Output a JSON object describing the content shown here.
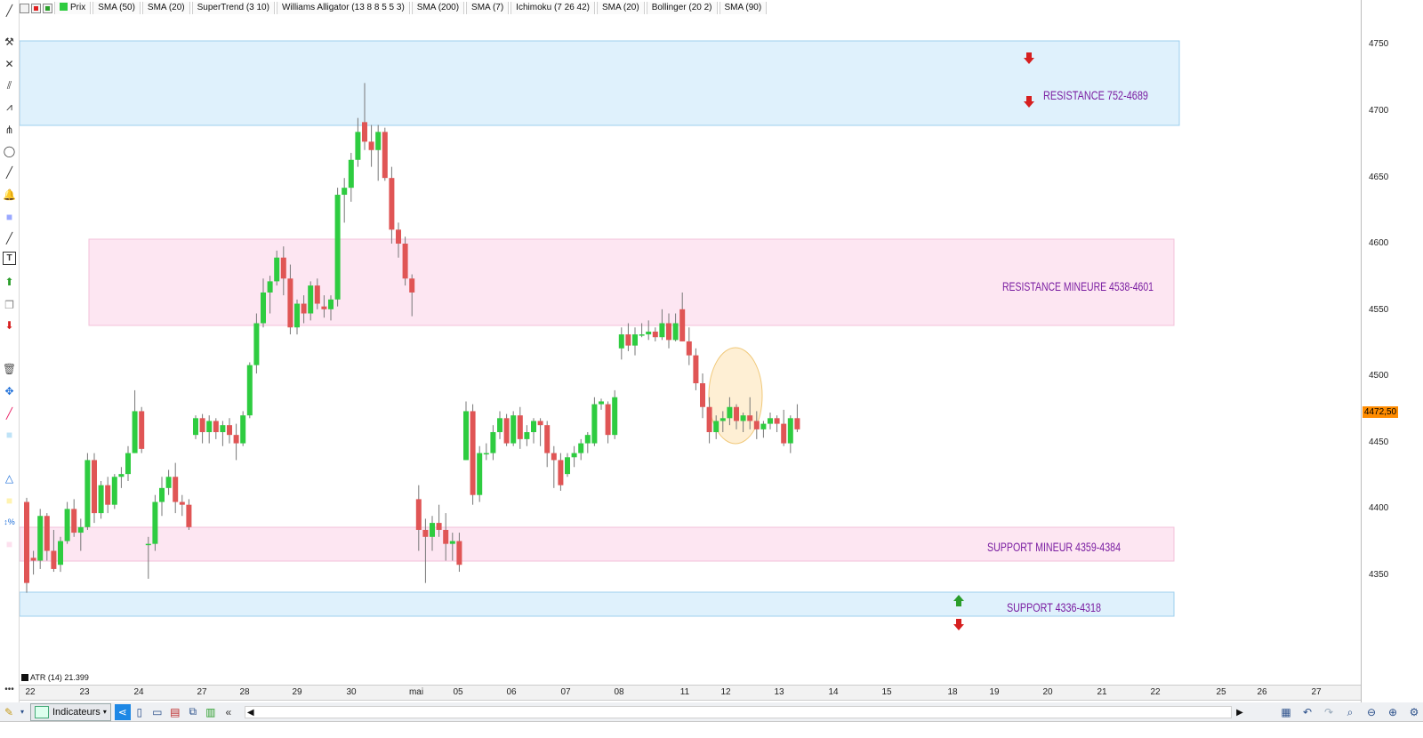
{
  "indicators": [
    "Prix",
    "SMA (50)",
    "SMA (20)",
    "SuperTrend (3 10)",
    "Williams Alligator (13 8 8 5 5 3)",
    "SMA (200)",
    "SMA (7)",
    "Ichimoku (7 26 42)",
    "SMA (20)",
    "Bollinger (20 2)",
    "SMA (90)"
  ],
  "price_axis": {
    "ticks": [
      "4750",
      "4700",
      "4650",
      "4600",
      "4550",
      "4500",
      "4450",
      "4400",
      "4350"
    ],
    "current_price": "4472,50",
    "current_price_color": "#ff8c00"
  },
  "date_axis": {
    "labels": [
      "22",
      "23",
      "24",
      "27",
      "28",
      "29",
      "30",
      "mai",
      "05",
      "06",
      "07",
      "08",
      "11",
      "12",
      "13",
      "14",
      "15",
      "18",
      "19",
      "20",
      "21",
      "22",
      "25",
      "26",
      "27"
    ]
  },
  "zones": [
    {
      "label": "RESISTANCE 752-4689",
      "color": "#dff1fc",
      "border": "#9ccfee"
    },
    {
      "label": "RESISTANCE MINEURE 4538-4601",
      "color": "#fde6f2",
      "border": "#f3c0da"
    },
    {
      "label": "SUPPORT MINEUR 4359-4384",
      "color": "#fde6f2",
      "border": "#f3c0da"
    },
    {
      "label": "SUPPORT 4336-4318",
      "color": "#dff1fc",
      "border": "#9ccfee"
    }
  ],
  "zone_label_color": "#7b1fa2",
  "candle_colors": {
    "up": "#2ecc40",
    "down": "#e05555"
  },
  "atr_label": "ATR (14) 21.399",
  "toolbar": {
    "indicators_label": "Indicateurs"
  },
  "chart_data": {
    "type": "candlestick",
    "ylim": [
      4300,
      4768
    ],
    "ohlc": [
      [
        4420,
        4423,
        4355,
        4362
      ],
      [
        4380,
        4385,
        4368,
        4378
      ],
      [
        4378,
        4415,
        4372,
        4410
      ],
      [
        4410,
        4412,
        4378,
        4385
      ],
      [
        4385,
        4400,
        4370,
        4372
      ],
      [
        4375,
        4395,
        4370,
        4392
      ],
      [
        4392,
        4420,
        4390,
        4415
      ],
      [
        4415,
        4422,
        4395,
        4398
      ],
      [
        4398,
        4408,
        4385,
        4402
      ],
      [
        4402,
        4455,
        4400,
        4450
      ],
      [
        4450,
        4455,
        4405,
        4412
      ],
      [
        4412,
        4435,
        4408,
        4432
      ],
      [
        4432,
        4438,
        4412,
        4418
      ],
      [
        4418,
        4440,
        4415,
        4438
      ],
      [
        4438,
        4445,
        4430,
        4440
      ],
      [
        4440,
        4460,
        4435,
        4455
      ],
      [
        4455,
        4500,
        4455,
        4485
      ],
      [
        4485,
        4488,
        4455,
        4458
      ],
      [
        4390,
        4395,
        4365,
        4390
      ],
      [
        4390,
        4425,
        4385,
        4420
      ],
      [
        4420,
        4438,
        4410,
        4430
      ],
      [
        4430,
        4443,
        4425,
        4438
      ],
      [
        4438,
        4448,
        4412,
        4420
      ],
      [
        4420,
        4425,
        4410,
        4418
      ],
      [
        4418,
        4422,
        4400,
        4402
      ],
      [
        4468,
        4482,
        4465,
        4480
      ],
      [
        4480,
        4483,
        4462,
        4470
      ],
      [
        4470,
        4482,
        4462,
        4478
      ],
      [
        4478,
        4480,
        4465,
        4470
      ],
      [
        4470,
        4478,
        4460,
        4475
      ],
      [
        4475,
        4480,
        4462,
        4468
      ],
      [
        4468,
        4476,
        4450,
        4462
      ],
      [
        4462,
        4485,
        4460,
        4482
      ],
      [
        4482,
        4520,
        4480,
        4518
      ],
      [
        4518,
        4555,
        4512,
        4548
      ],
      [
        4548,
        4580,
        4545,
        4570
      ],
      [
        4570,
        4582,
        4555,
        4578
      ],
      [
        4578,
        4600,
        4575,
        4595
      ],
      [
        4595,
        4603,
        4568,
        4580
      ],
      [
        4580,
        4590,
        4540,
        4545
      ],
      [
        4545,
        4565,
        4540,
        4562
      ],
      [
        4562,
        4568,
        4548,
        4555
      ],
      [
        4555,
        4578,
        4550,
        4575
      ],
      [
        4575,
        4580,
        4558,
        4562
      ],
      [
        4560,
        4568,
        4552,
        4558
      ],
      [
        4558,
        4568,
        4550,
        4565
      ],
      [
        4565,
        4645,
        4560,
        4640
      ],
      [
        4640,
        4652,
        4620,
        4645
      ],
      [
        4645,
        4670,
        4635,
        4665
      ],
      [
        4665,
        4695,
        4660,
        4685
      ],
      [
        4692,
        4720,
        4672,
        4678
      ],
      [
        4678,
        4690,
        4660,
        4672
      ],
      [
        4672,
        4690,
        4650,
        4685
      ],
      [
        4685,
        4688,
        4650,
        4652
      ],
      [
        4652,
        4660,
        4605,
        4615
      ],
      [
        4615,
        4620,
        4595,
        4605
      ],
      [
        4605,
        4610,
        4575,
        4580
      ],
      [
        4580,
        4583,
        4553,
        4570
      ],
      [
        4422,
        4432,
        4385,
        4400
      ],
      [
        4400,
        4408,
        4362,
        4395
      ],
      [
        4395,
        4410,
        4385,
        4405
      ],
      [
        4405,
        4418,
        4395,
        4400
      ],
      [
        4400,
        4412,
        4378,
        4390
      ],
      [
        4390,
        4398,
        4378,
        4392
      ],
      [
        4392,
        4398,
        4370,
        4375
      ],
      [
        4450,
        4492,
        4450,
        4485
      ],
      [
        4485,
        4490,
        4418,
        4425
      ],
      [
        4425,
        4460,
        4420,
        4455
      ],
      [
        4455,
        4462,
        4450,
        4455
      ],
      [
        4455,
        4475,
        4450,
        4470
      ],
      [
        4470,
        4485,
        4465,
        4480
      ],
      [
        4480,
        4483,
        4460,
        4462
      ],
      [
        4462,
        4485,
        4460,
        4482
      ],
      [
        4482,
        4488,
        4458,
        4465
      ],
      [
        4465,
        4475,
        4460,
        4470
      ],
      [
        4470,
        4480,
        4462,
        4478
      ],
      [
        4478,
        4480,
        4460,
        4475
      ],
      [
        4475,
        4478,
        4445,
        4455
      ],
      [
        4455,
        4460,
        4430,
        4450
      ],
      [
        4450,
        4455,
        4428,
        4432
      ],
      [
        4440,
        4455,
        4438,
        4452
      ],
      [
        4452,
        4460,
        4445,
        4455
      ],
      [
        4455,
        4465,
        4450,
        4462
      ],
      [
        4462,
        4470,
        4455,
        4468
      ],
      [
        4462,
        4495,
        4460,
        4490
      ],
      [
        4490,
        4494,
        4486,
        4492
      ],
      [
        4490,
        4492,
        4462,
        4468
      ],
      [
        4468,
        4500,
        4465,
        4495
      ],
      [
        4530,
        4545,
        4522,
        4540
      ],
      [
        4540,
        4548,
        4528,
        4532
      ],
      [
        4532,
        4545,
        4525,
        4540
      ],
      [
        4540,
        4548,
        4538,
        4540
      ],
      [
        4540,
        4550,
        4536,
        4542
      ],
      [
        4542,
        4545,
        4535,
        4538
      ],
      [
        4538,
        4558,
        4536,
        4548
      ],
      [
        4548,
        4555,
        4530,
        4536
      ],
      [
        4536,
        4555,
        4535,
        4548
      ],
      [
        4558,
        4570,
        4535,
        4535
      ],
      [
        4535,
        4545,
        4518,
        4525
      ],
      [
        4525,
        4530,
        4500,
        4505
      ],
      [
        4505,
        4512,
        4480,
        4488
      ],
      [
        4488,
        4495,
        4462,
        4470
      ],
      [
        4470,
        4482,
        4465,
        4478
      ],
      [
        4478,
        4485,
        4470,
        4480
      ],
      [
        4480,
        4495,
        4475,
        4488
      ],
      [
        4488,
        4490,
        4472,
        4478
      ],
      [
        4478,
        4484,
        4470,
        4482
      ],
      [
        4482,
        4495,
        4472,
        4478
      ],
      [
        4478,
        4485,
        4465,
        4472
      ],
      [
        4472,
        4478,
        4466,
        4476
      ],
      [
        4476,
        4484,
        4472,
        4480
      ],
      [
        4480,
        4482,
        4470,
        4476
      ],
      [
        4476,
        4486,
        4460,
        4462
      ],
      [
        4462,
        4482,
        4455,
        4480
      ],
      [
        4480,
        4490,
        4470,
        4472
      ]
    ]
  }
}
